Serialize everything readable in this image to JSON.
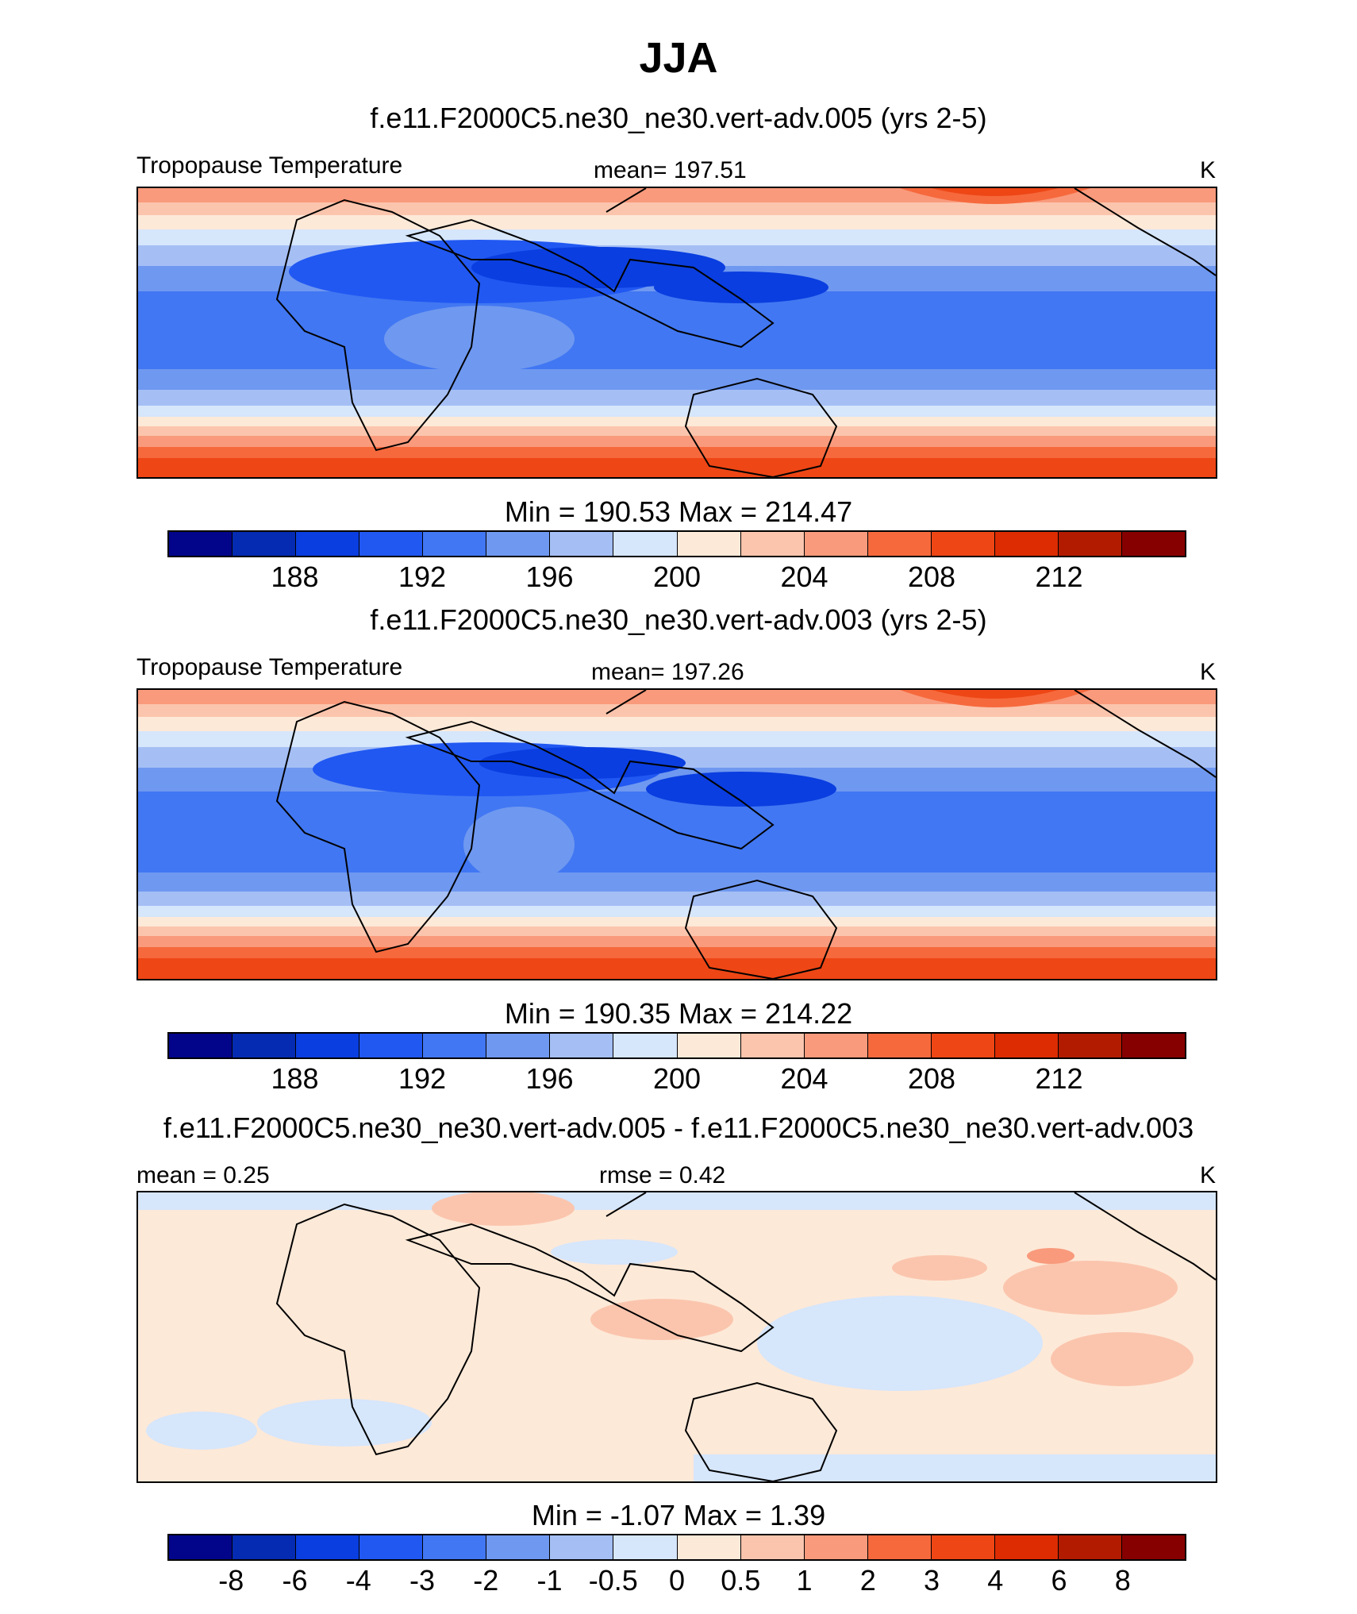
{
  "figure": {
    "title": "JJA"
  },
  "chart_data": [
    {
      "type": "heatmap",
      "title": "f.e11.F2000C5.ne30_ne30.vert-adv.005 (yrs 2-5)",
      "left_label": "Tropopause Temperature",
      "center_label": "mean= 197.51",
      "units": "K",
      "minmax": "Min = 190.53 Max = 214.47",
      "colorbar": {
        "colors": [
          "#02058a",
          "#052bb2",
          "#0a3ee0",
          "#2158f2",
          "#4177f2",
          "#6f98f0",
          "#a5bff5",
          "#d6e6fb",
          "#fde9d8",
          "#fbc5ad",
          "#f99a7c",
          "#f6693d",
          "#ee4615",
          "#dd2c02",
          "#b31b00",
          "#870000"
        ],
        "tick_labels": [
          "188",
          "192",
          "196",
          "200",
          "204",
          "208",
          "212"
        ],
        "tick_positions": [
          2,
          4,
          6,
          8,
          10,
          12,
          14
        ]
      }
    },
    {
      "type": "heatmap",
      "title": "f.e11.F2000C5.ne30_ne30.vert-adv.003 (yrs 2-5)",
      "left_label": "Tropopause Temperature",
      "center_label": "mean= 197.26",
      "units": "K",
      "minmax": "Min = 190.35 Max = 214.22",
      "colorbar": {
        "colors": [
          "#02058a",
          "#052bb2",
          "#0a3ee0",
          "#2158f2",
          "#4177f2",
          "#6f98f0",
          "#a5bff5",
          "#d6e6fb",
          "#fde9d8",
          "#fbc5ad",
          "#f99a7c",
          "#f6693d",
          "#ee4615",
          "#dd2c02",
          "#b31b00",
          "#870000"
        ],
        "tick_labels": [
          "188",
          "192",
          "196",
          "200",
          "204",
          "208",
          "212"
        ],
        "tick_positions": [
          2,
          4,
          6,
          8,
          10,
          12,
          14
        ]
      }
    },
    {
      "type": "heatmap",
      "title": "f.e11.F2000C5.ne30_ne30.vert-adv.005 - f.e11.F2000C5.ne30_ne30.vert-adv.003",
      "left_label": "mean =   0.25",
      "center_label": "rmse =   0.42",
      "units": "K",
      "minmax": "Min =  -1.07 Max =    1.39",
      "colorbar": {
        "colors": [
          "#02058a",
          "#052bb2",
          "#0a3ee0",
          "#2158f2",
          "#4177f2",
          "#6f98f0",
          "#a5bff5",
          "#d6e6fb",
          "#fde9d8",
          "#fbc5ad",
          "#f99a7c",
          "#f6693d",
          "#ee4615",
          "#dd2c02",
          "#b31b00",
          "#870000"
        ],
        "tick_labels": [
          "-8",
          "-6",
          "-4",
          "-3",
          "-2",
          "-1",
          "-0.5",
          "0",
          "0.5",
          "1",
          "2",
          "3",
          "4",
          "6",
          "8"
        ],
        "tick_positions": [
          1,
          2,
          3,
          4,
          5,
          6,
          7,
          8,
          9,
          10,
          11,
          12,
          13,
          14,
          15
        ]
      }
    }
  ]
}
